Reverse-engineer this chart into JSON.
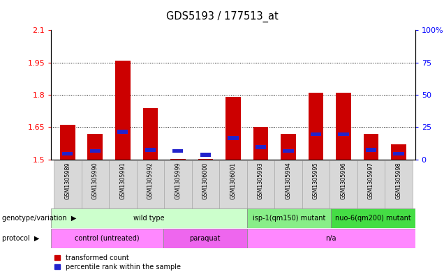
{
  "title": "GDS5193 / 177513_at",
  "samples": [
    "GSM1305989",
    "GSM1305990",
    "GSM1305991",
    "GSM1305992",
    "GSM1305999",
    "GSM1306000",
    "GSM1306001",
    "GSM1305993",
    "GSM1305994",
    "GSM1305995",
    "GSM1305996",
    "GSM1305997",
    "GSM1305998"
  ],
  "red_values": [
    1.66,
    1.62,
    1.96,
    1.74,
    1.502,
    1.501,
    1.79,
    1.65,
    1.62,
    1.81,
    1.81,
    1.62,
    1.57
  ],
  "blue_percentile": [
    3,
    5,
    20,
    6,
    5,
    2,
    15,
    8,
    5,
    18,
    18,
    6,
    3
  ],
  "ylim_left": [
    1.5,
    2.1
  ],
  "ylim_right": [
    0,
    100
  ],
  "yticks_left": [
    1.5,
    1.65,
    1.8,
    1.95,
    2.1
  ],
  "yticks_right": [
    0,
    25,
    50,
    75,
    100
  ],
  "ytick_labels_left": [
    "1.5",
    "1.65",
    "1.8",
    "1.95",
    "2.1"
  ],
  "ytick_labels_right": [
    "0",
    "25",
    "50",
    "75",
    "100%"
  ],
  "bar_width": 0.55,
  "red_color": "#cc0000",
  "blue_color": "#2222cc",
  "base_value": 1.5,
  "genotype_groups": [
    {
      "label": "wild type",
      "start": 0,
      "end": 7,
      "color": "#ccffcc"
    },
    {
      "label": "isp-1(qm150) mutant",
      "start": 7,
      "end": 10,
      "color": "#88ee88"
    },
    {
      "label": "nuo-6(qm200) mutant",
      "start": 10,
      "end": 13,
      "color": "#44dd44"
    }
  ],
  "protocol_groups": [
    {
      "label": "control (untreated)",
      "start": 0,
      "end": 4,
      "color": "#ff88ff"
    },
    {
      "label": "paraquat",
      "start": 4,
      "end": 7,
      "color": "#ee66ee"
    },
    {
      "label": "n/a",
      "start": 7,
      "end": 13,
      "color": "#ff88ff"
    }
  ],
  "legend_items": [
    {
      "color": "#cc0000",
      "label": "transformed count"
    },
    {
      "color": "#2222cc",
      "label": "percentile rank within the sample"
    }
  ],
  "label_row1": "genotype/variation",
  "label_row2": "protocol"
}
